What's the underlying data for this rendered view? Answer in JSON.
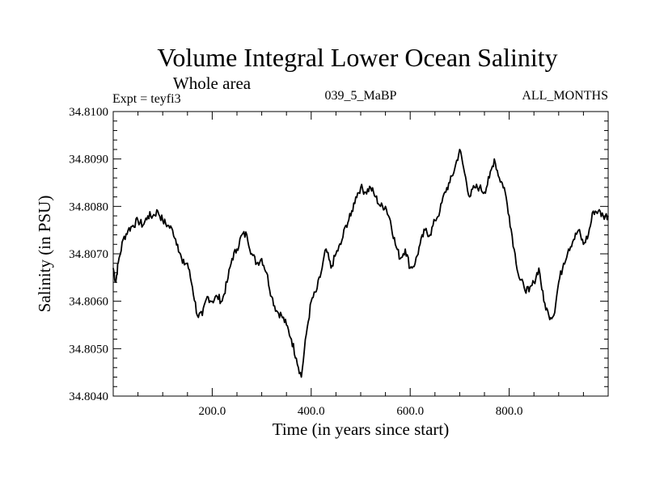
{
  "chart_data": {
    "type": "line",
    "title": "Volume Integral Lower Ocean Salinity",
    "subtitle": "Whole area",
    "header_left": "Expt = teyfi3",
    "header_center": "039_5_MaBP",
    "header_right": "ALL_MONTHS",
    "xlabel": "Time (in years since start)",
    "ylabel": "Salinity (in PSU)",
    "xlim": [
      0,
      1000
    ],
    "ylim": [
      34.804,
      34.81
    ],
    "x_ticks": [
      200,
      400,
      600,
      800
    ],
    "x_tick_labels": [
      "200.0",
      "400.0",
      "600.0",
      "800.0"
    ],
    "y_ticks": [
      34.804,
      34.805,
      34.806,
      34.807,
      34.808,
      34.809,
      34.81
    ],
    "y_tick_labels": [
      "34.8040",
      "34.8050",
      "34.8060",
      "34.8070",
      "34.8080",
      "34.8090",
      "34.8100"
    ],
    "series": [
      {
        "name": "salinity",
        "x": [
          0,
          5,
          10,
          20,
          30,
          40,
          50,
          60,
          70,
          80,
          90,
          100,
          110,
          120,
          130,
          140,
          150,
          160,
          170,
          180,
          190,
          200,
          210,
          220,
          230,
          240,
          250,
          260,
          270,
          280,
          290,
          300,
          310,
          320,
          330,
          340,
          350,
          360,
          370,
          380,
          390,
          400,
          410,
          420,
          430,
          440,
          450,
          460,
          470,
          480,
          490,
          500,
          510,
          520,
          530,
          540,
          550,
          560,
          570,
          580,
          590,
          600,
          610,
          620,
          630,
          640,
          650,
          660,
          670,
          680,
          690,
          700,
          710,
          720,
          730,
          740,
          750,
          760,
          770,
          780,
          790,
          800,
          810,
          820,
          830,
          840,
          850,
          860,
          870,
          880,
          890,
          900,
          910,
          920,
          930,
          940,
          950,
          960,
          970,
          980,
          990,
          1000
        ],
        "values": [
          34.8067,
          34.8064,
          34.8068,
          34.8073,
          34.8075,
          34.8076,
          34.8077,
          34.8076,
          34.8078,
          34.8078,
          34.8079,
          34.8077,
          34.8076,
          34.8075,
          34.8072,
          34.8068,
          34.8068,
          34.8063,
          34.8057,
          34.8057,
          34.8061,
          34.806,
          34.8061,
          34.806,
          34.8064,
          34.8069,
          34.8071,
          34.8074,
          34.8074,
          34.807,
          34.8068,
          34.8069,
          34.8066,
          34.8061,
          34.8058,
          34.8057,
          34.8055,
          34.8052,
          34.8048,
          34.8044,
          34.8053,
          34.806,
          34.8062,
          34.8066,
          34.8071,
          34.8067,
          34.807,
          34.8072,
          34.8076,
          34.8078,
          34.8082,
          34.8084,
          34.8083,
          34.8084,
          34.8082,
          34.808,
          34.808,
          34.8077,
          34.8072,
          34.8069,
          34.8071,
          34.8067,
          34.8068,
          34.8072,
          34.8075,
          34.8074,
          34.8077,
          34.8079,
          34.8083,
          34.8085,
          34.8088,
          34.8092,
          34.8087,
          34.8082,
          34.8084,
          34.8084,
          34.8083,
          34.8086,
          34.809,
          34.8086,
          34.8084,
          34.8078,
          34.8071,
          34.8065,
          34.8063,
          34.8062,
          34.8064,
          34.8067,
          34.806,
          34.8057,
          34.8057,
          34.8064,
          34.8068,
          34.8071,
          34.8073,
          34.8075,
          34.8072,
          34.8074,
          34.8079,
          34.8079,
          34.8078,
          34.8078
        ]
      }
    ]
  }
}
